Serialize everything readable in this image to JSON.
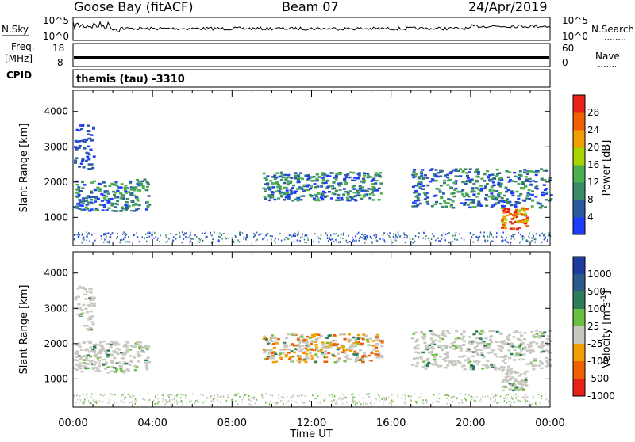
{
  "header": {
    "station": "Goose Bay (fitACF)",
    "beam": "Beam 07",
    "date": "24/Apr/2019"
  },
  "strip_labels": {
    "nsky": "N.Sky",
    "freq_line1": "Freq.",
    "freq_line2": "[MHz]",
    "cpid": "CPID",
    "nsearch": "N.Search",
    "nave": "Nave",
    "cpid_value": "themis (tau) -3310"
  },
  "chart_data": [
    {
      "type": "line",
      "name": "noise",
      "left_axis_ticks": [
        "10^5",
        "10^0"
      ],
      "right_axis_ticks": [
        "10^5",
        "10^0"
      ],
      "description_series": [
        "N.Sky",
        "N.Search"
      ]
    },
    {
      "type": "line",
      "name": "frequency",
      "left_axis_ticks": [
        "18",
        "8"
      ],
      "right_axis_ticks": [
        "60",
        "0"
      ],
      "ylim_left": [
        8,
        18
      ],
      "ylim_right": [
        0,
        60
      ],
      "freq_value": 10.4
    },
    {
      "type": "heatmap",
      "name": "power",
      "ylabel": "Slant Range [km]",
      "yticks": [
        "1000",
        "2000",
        "3000",
        "4000"
      ],
      "ylim": [
        200,
        4600
      ],
      "xlim_hours": [
        0,
        24
      ],
      "colorbar_label": "Power [dB]",
      "colorbar_ticks": [
        "4",
        "8",
        "12",
        "16",
        "20",
        "24",
        "28"
      ],
      "colorbar_colors": [
        "#1e3cff",
        "#2c5aa0",
        "#3a8a6a",
        "#4caf50",
        "#aad400",
        "#f0a000",
        "#f06000",
        "#e8201a"
      ],
      "echo_regions": [
        {
          "t0": 0.0,
          "t1": 3.8,
          "r0": 1200,
          "r1": 2100,
          "level": "mid"
        },
        {
          "t0": 0.0,
          "t1": 1.0,
          "r0": 2400,
          "r1": 3700,
          "level": "low"
        },
        {
          "t0": 9.5,
          "t1": 15.5,
          "r0": 1500,
          "r1": 2300,
          "level": "mid"
        },
        {
          "t0": 17.0,
          "t1": 24.0,
          "r0": 1300,
          "r1": 2400,
          "level": "mid"
        },
        {
          "t0": 21.5,
          "t1": 22.8,
          "r0": 700,
          "r1": 1300,
          "level": "high"
        }
      ]
    },
    {
      "type": "heatmap",
      "name": "velocity",
      "ylabel": "Slant Range [km]",
      "yticks": [
        "1000",
        "2000",
        "3000",
        "4000"
      ],
      "ylim": [
        200,
        4600
      ],
      "xlim_hours": [
        0,
        24
      ],
      "colorbar_label": "Velocity [m s^-1]",
      "colorbar_ticks": [
        "1000",
        "500",
        "100",
        "25",
        "-25",
        "-100",
        "-500",
        "-1000"
      ],
      "colorbar_colors": [
        "#1e3ca0",
        "#2a5a8a",
        "#2e7d5a",
        "#6cc040",
        "#c8c8c0",
        "#f0a000",
        "#f06000",
        "#e8201a"
      ],
      "xticks": [
        "00:00",
        "04:00",
        "08:00",
        "12:00",
        "16:00",
        "20:00",
        "00:00"
      ],
      "xlabel": "Time UT"
    }
  ],
  "colors": {
    "gray_scatter": "#c8c8c0"
  }
}
